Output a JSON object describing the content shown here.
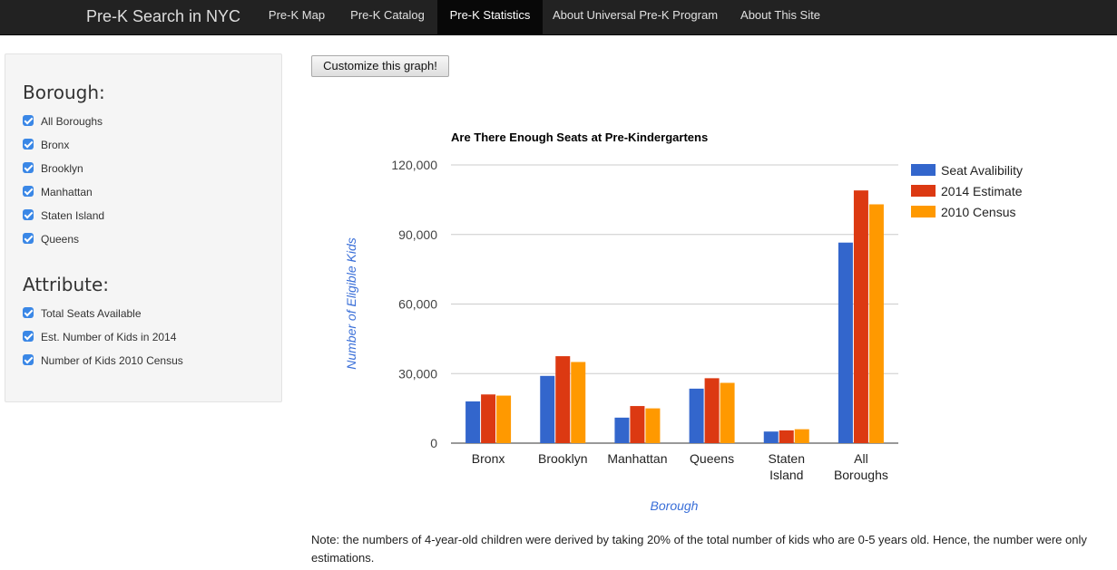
{
  "navbar": {
    "brand": "Pre-K Search in NYC",
    "items": [
      {
        "label": "Pre-K Map",
        "active": false
      },
      {
        "label": "Pre-K Catalog",
        "active": false
      },
      {
        "label": "Pre-K Statistics",
        "active": true
      },
      {
        "label": "About Universal Pre-K Program",
        "active": false
      },
      {
        "label": "About This Site",
        "active": false
      }
    ]
  },
  "sidebar": {
    "borough_title": "Borough:",
    "boroughs": [
      {
        "label": "All Boroughs",
        "checked": true
      },
      {
        "label": "Bronx",
        "checked": true
      },
      {
        "label": "Brooklyn",
        "checked": true
      },
      {
        "label": "Manhattan",
        "checked": true
      },
      {
        "label": "Staten Island",
        "checked": true
      },
      {
        "label": "Queens",
        "checked": true
      }
    ],
    "attribute_title": "Attribute:",
    "attributes": [
      {
        "label": "Total Seats Available",
        "checked": true
      },
      {
        "label": "Est. Number of Kids in 2014",
        "checked": true
      },
      {
        "label": "Number of Kids 2010 Census",
        "checked": true
      }
    ]
  },
  "customize_button": "Customize this graph!",
  "chart_data": {
    "type": "bar",
    "title": "Are There Enough Seats at Pre-Kindergartens",
    "xlabel": "Borough",
    "ylabel": "Number of Eligible Kids",
    "categories": [
      [
        "Bronx"
      ],
      [
        "Brooklyn"
      ],
      [
        "Manhattan"
      ],
      [
        "Queens"
      ],
      [
        "Staten",
        "Island"
      ],
      [
        "All",
        "Boroughs"
      ]
    ],
    "ylim": [
      0,
      120000
    ],
    "yticks": [
      0,
      30000,
      60000,
      90000,
      120000
    ],
    "ytick_labels": [
      "0",
      "30,000",
      "60,000",
      "90,000",
      "120,000"
    ],
    "grid": true,
    "legend_position": "right",
    "series": [
      {
        "name": "Seat Avalibility",
        "color": "#3366cc",
        "values": [
          18000,
          29000,
          11000,
          23500,
          5000,
          86500
        ]
      },
      {
        "name": "2014 Estimate",
        "color": "#dc3912",
        "values": [
          21000,
          37500,
          16000,
          28000,
          5500,
          109000
        ]
      },
      {
        "name": "2010 Census",
        "color": "#ff9900",
        "values": [
          20500,
          35000,
          15000,
          26000,
          6000,
          103000
        ]
      }
    ]
  },
  "note": "Note: the numbers of 4-year-old children were derived by taking 20% of the total number of kids who are 0-5 years old. Hence, the number were only estimations."
}
